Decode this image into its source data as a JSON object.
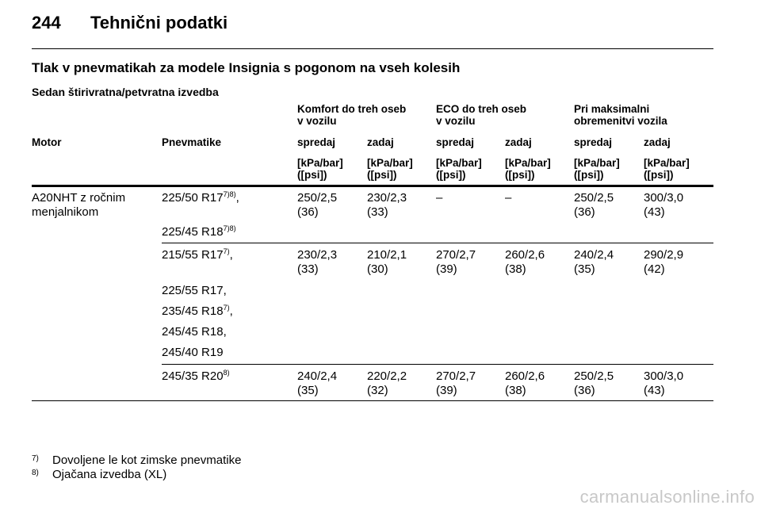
{
  "header": {
    "page_number": "244",
    "title": "Tehnični podatki"
  },
  "section_title": "Tlak v pnevmatikah za modele Insignia s pogonom na vseh kolesih",
  "subtitle": "Sedan štirivratna/petvratna izvedba",
  "column_groups": {
    "komfort": [
      "Komfort do treh oseb",
      "v vozilu"
    ],
    "eco": [
      "ECO do treh oseb",
      "v vozilu"
    ],
    "max": [
      "Pri maksimalni",
      "obremenitvi vozila"
    ]
  },
  "columns": {
    "motor": "Motor",
    "pnevmatike": "Pnevmatike",
    "spredaj": "spredaj",
    "zadaj": "zadaj",
    "unit_line1": "[kPa/bar]",
    "unit_line2": "([psi])"
  },
  "rows": {
    "motor_line1": "A20NHT z ročnim",
    "motor_line2": "menjalnikom",
    "g1": {
      "tyres": [
        {
          "text": "225/50 R17",
          "sup": "7)8)",
          "suffix": ","
        },
        {
          "text": "225/45 R18",
          "sup": "7)8)",
          "suffix": ""
        }
      ],
      "values": [
        [
          "250/2,5",
          "(36)"
        ],
        [
          "230/2,3",
          "(33)"
        ],
        [
          "–",
          ""
        ],
        [
          "–",
          ""
        ],
        [
          "250/2,5",
          "(36)"
        ],
        [
          "300/3,0",
          "(43)"
        ]
      ]
    },
    "g2": {
      "tyres": [
        {
          "text": "215/55 R17",
          "sup": "7)",
          "suffix": ","
        },
        {
          "text": "225/55 R17,",
          "sup": "",
          "suffix": ""
        },
        {
          "text": "235/45 R18",
          "sup": "7)",
          "suffix": ","
        },
        {
          "text": "245/45 R18,",
          "sup": "",
          "suffix": ""
        },
        {
          "text": "245/40 R19",
          "sup": "",
          "suffix": ""
        }
      ],
      "values": [
        [
          "230/2,3",
          "(33)"
        ],
        [
          "210/2,1",
          "(30)"
        ],
        [
          "270/2,7",
          "(39)"
        ],
        [
          "260/2,6",
          "(38)"
        ],
        [
          "240/2,4",
          "(35)"
        ],
        [
          "290/2,9",
          "(42)"
        ]
      ]
    },
    "g3": {
      "tyres": [
        {
          "text": "245/35 R20",
          "sup": "8)",
          "suffix": ""
        }
      ],
      "values": [
        [
          "240/2,4",
          "(35)"
        ],
        [
          "220/2,2",
          "(32)"
        ],
        [
          "270/2,7",
          "(39)"
        ],
        [
          "260/2,6",
          "(38)"
        ],
        [
          "250/2,5",
          "(36)"
        ],
        [
          "300/3,0",
          "(43)"
        ]
      ]
    }
  },
  "footnotes": [
    {
      "mark": "7)",
      "text": "Dovoljene le kot zimske pnevmatike"
    },
    {
      "mark": "8)",
      "text": "Ojačana izvedba (XL)"
    }
  ],
  "watermark": "carmanualsonline.info"
}
